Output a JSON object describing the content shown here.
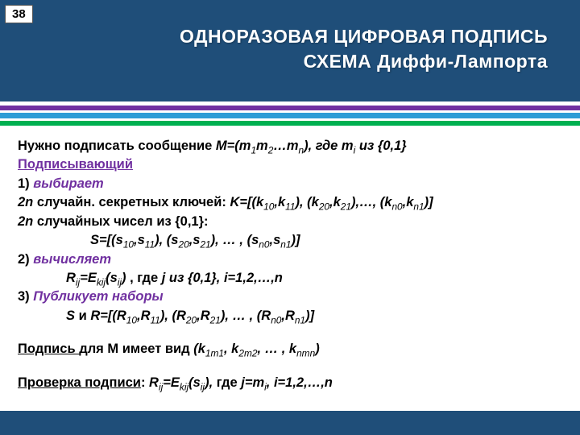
{
  "page_number": "38",
  "title_line1": "ОДНОРАЗОВАЯ ЦИФРОВАЯ ПОДПИСЬ",
  "title_line2": "СХЕМА Диффи-Лампорта",
  "header_bg": "#1f4e79",
  "bands": [
    {
      "color": "#ffffff",
      "h": 5
    },
    {
      "color": "#7030a0",
      "h": 6
    },
    {
      "color": "#ffffff",
      "h": 3
    },
    {
      "color": "#2e9cd6",
      "h": 7
    },
    {
      "color": "#ffffff",
      "h": 3
    },
    {
      "color": "#00b050",
      "h": 6
    }
  ],
  "footer_color": "#1f4e79",
  "text": {
    "l1a": "Нужно подписать сообщение ",
    "l1b": "M=(m",
    "l1c": "m",
    "l1d": "…m",
    "l1e": "), где   m",
    "l1f": " из {0,1}",
    "l2": "Подписывающий",
    "l3a": "1) ",
    "l3b": "выбирает",
    "l4a": "2n",
    "l4b": " случайн. секретных ключей: ",
    "l4c": "K=[(k",
    "l4d": ",k",
    "l4e": "), (k",
    "l4f": "),…, (k",
    "l4g": ")]",
    "l5a": "2n",
    "l5b": " случайных чисел из {0,1}",
    "l5c": ":",
    "l6a": "S=[(s",
    "l6b": ",s",
    "l6c": "), (s",
    "l6d": "), … , (s",
    "l6e": ")]",
    "l7a": "2) ",
    "l7b": "вычисляет",
    "l8a": "R",
    "l8b": "=E",
    "l8c": "(s",
    "l8d": ")",
    "l8e": " , где      ",
    "l8f": "j из {0,1},  i=1,2,…,n",
    "l9a": "3) ",
    "l9b": "Публикует наборы",
    "l10a": "S",
    "l10b": " и ",
    "l10c": "R=[(R",
    "l10d": ",R",
    "l10e": "), (R",
    "l10f": "), … , (R",
    "l10g": ")]",
    "l11a": "Подпись ",
    "l11b": "для M имеет вид  ",
    "l11c": "(k",
    "l11d": ", k",
    "l11e": ", … , k",
    "l11f": ")",
    "l12a": "Проверка подписи",
    "l12b": ":    ",
    "l12c": "R",
    "l12d": "=E",
    "l12e": "(s",
    "l12f": "),",
    "l12g": " где ",
    "l12h": "j=m",
    "l12i": ", i=1,2,…,n",
    "sub": {
      "s1": "1",
      "s2": "2",
      "sn": "n",
      "si": "i",
      "sij": "ij",
      "skij": "kij",
      "s10": "10",
      "s11": "11",
      "s20": "20",
      "s21": "21",
      "sn0": "n0",
      "sn1": "n1",
      "s1m1": "1m1",
      "s2m2": "2m2",
      "snmn": "nmn"
    }
  }
}
